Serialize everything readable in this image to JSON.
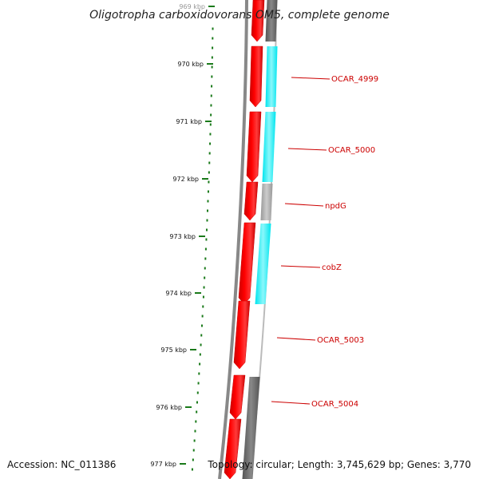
{
  "title": "Oligotropha carboxidovorans OM5, complete genome",
  "footer": {
    "accession": "Accession: NC_011386",
    "summary": "Topology: circular; Length: 3,745,629 bp; Genes: 3,770"
  },
  "ruler": {
    "labels": [
      "969 kbp",
      "970 kbp",
      "971 kbp",
      "972 kbp",
      "973 kbp",
      "974 kbp",
      "975 kbp",
      "976 kbp",
      "977 kbp"
    ]
  },
  "genes": [
    {
      "label": "OCAR_4999",
      "strand": "-",
      "partner_color": "#00e5ee"
    },
    {
      "label": "OCAR_5000",
      "strand": "-",
      "partner_color": "#00e5ee"
    },
    {
      "label": "npdG",
      "strand": "-",
      "partner_color": "#aaaaaa"
    },
    {
      "label": "cobZ",
      "strand": "-",
      "partner_color": "#00e5ee"
    },
    {
      "label": "OCAR_5003",
      "strand": "-",
      "partner_color": "none"
    },
    {
      "label": "OCAR_5004",
      "strand": "-",
      "partner_color": "#666666"
    }
  ],
  "colors": {
    "gene": "#ff0000",
    "label": "#cc0000",
    "ruler": "#1a7a1a",
    "backbone": "#888888",
    "cyan": "#00e5ee",
    "gray": "#aaaaaa",
    "dark_gray": "#666666"
  }
}
